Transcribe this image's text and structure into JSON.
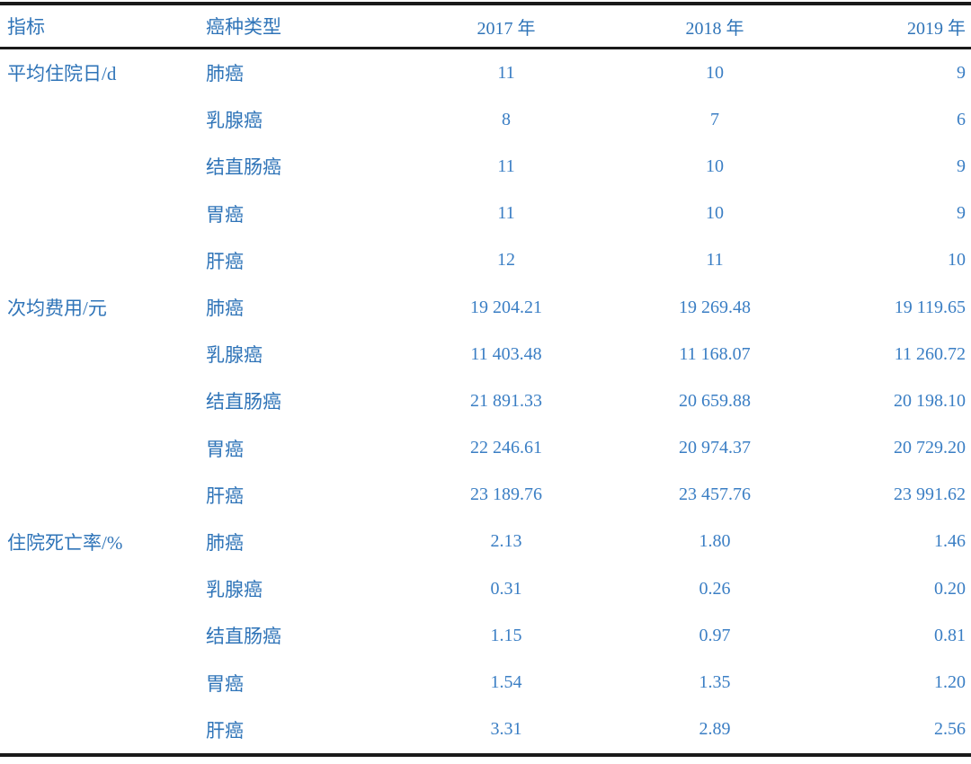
{
  "colors": {
    "text_blue": "#2f74b8",
    "number_blue": "#3a7ec4",
    "rule_black": "#1a1a1a",
    "background": "#ffffff"
  },
  "table": {
    "columns": [
      "指标",
      "癌种类型",
      "2017 年",
      "2018 年",
      "2019 年"
    ],
    "sections": [
      {
        "indicator": "平均住院日/d",
        "rows": [
          {
            "type": "肺癌",
            "values": [
              "11",
              "10",
              "9"
            ]
          },
          {
            "type": "乳腺癌",
            "values": [
              "8",
              "7",
              "6"
            ]
          },
          {
            "type": "结直肠癌",
            "values": [
              "11",
              "10",
              "9"
            ]
          },
          {
            "type": "胃癌",
            "values": [
              "11",
              "10",
              "9"
            ]
          },
          {
            "type": "肝癌",
            "values": [
              "12",
              "11",
              "10"
            ]
          }
        ]
      },
      {
        "indicator": "次均费用/元",
        "rows": [
          {
            "type": "肺癌",
            "values": [
              "19 204.21",
              "19 269.48",
              "19 119.65"
            ]
          },
          {
            "type": "乳腺癌",
            "values": [
              "11 403.48",
              "11 168.07",
              "11 260.72"
            ]
          },
          {
            "type": "结直肠癌",
            "values": [
              "21 891.33",
              "20 659.88",
              "20 198.10"
            ]
          },
          {
            "type": "胃癌",
            "values": [
              "22 246.61",
              "20 974.37",
              "20 729.20"
            ]
          },
          {
            "type": "肝癌",
            "values": [
              "23 189.76",
              "23 457.76",
              "23 991.62"
            ]
          }
        ]
      },
      {
        "indicator": "住院死亡率/%",
        "rows": [
          {
            "type": "肺癌",
            "values": [
              "2.13",
              "1.80",
              "1.46"
            ]
          },
          {
            "type": "乳腺癌",
            "values": [
              "0.31",
              "0.26",
              "0.20"
            ]
          },
          {
            "type": "结直肠癌",
            "values": [
              "1.15",
              "0.97",
              "0.81"
            ]
          },
          {
            "type": "胃癌",
            "values": [
              "1.54",
              "1.35",
              "1.20"
            ]
          },
          {
            "type": "肝癌",
            "values": [
              "3.31",
              "2.89",
              "2.56"
            ]
          }
        ]
      }
    ]
  }
}
